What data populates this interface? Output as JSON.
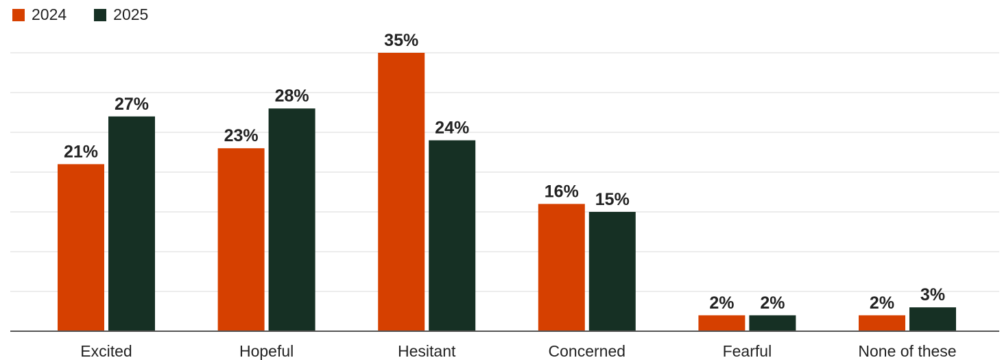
{
  "legend": {
    "items": [
      {
        "label": "2024",
        "color": "#D64000"
      },
      {
        "label": "2025",
        "color": "#163024"
      }
    ]
  },
  "chart_data": {
    "type": "bar",
    "categories": [
      "Excited",
      "Hopeful",
      "Hesitant",
      "Concerned",
      "Fearful",
      "None of these"
    ],
    "series": [
      {
        "name": "2024",
        "color": "#D64000",
        "values": [
          21,
          23,
          35,
          16,
          2,
          2
        ],
        "labels": [
          "21%",
          "23%",
          "35%",
          "16%",
          "2%",
          "2%"
        ]
      },
      {
        "name": "2025",
        "color": "#163024",
        "values": [
          27,
          28,
          24,
          15,
          2,
          3
        ],
        "labels": [
          "27%",
          "28%",
          "24%",
          "15%",
          "2%",
          "3%"
        ]
      }
    ],
    "ylim": [
      0,
      35
    ],
    "unit": "%",
    "grid": true,
    "legend_position": "top-left",
    "title": "",
    "xlabel": "",
    "ylabel": ""
  }
}
